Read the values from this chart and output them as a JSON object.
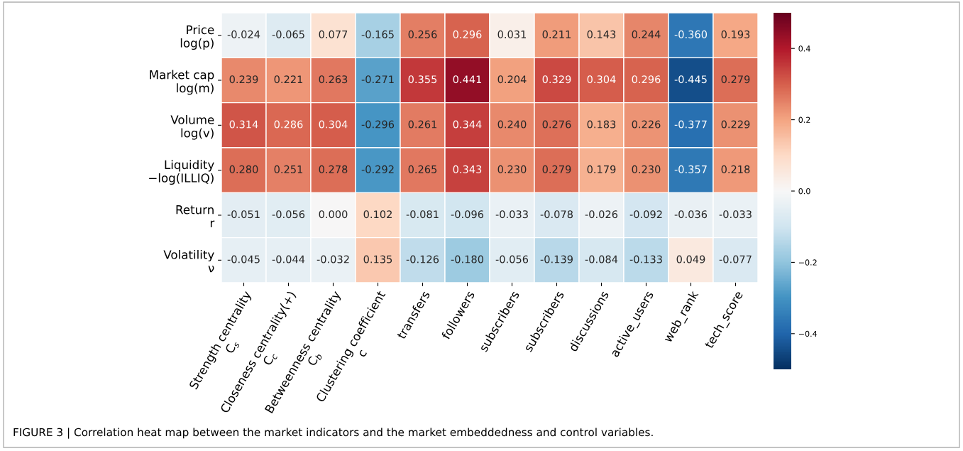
{
  "chart_data": {
    "type": "heatmap",
    "categories": [
      "Strength centrality\nC$_{s}$",
      "Closeness centrality(+)\nC$_{c}$",
      "Betweenness centrality\nC$_{b}$",
      "Clustering coefficient\nc",
      "transfers",
      "followers",
      "subscribers",
      "subscribers",
      "discussions",
      "active_users",
      "web_rank",
      "tech_score"
    ],
    "y_categories": [
      "Price\nlog(p)",
      "Market cap\nlog(m)",
      "Volume\nlog(v)",
      "Liquidity\n−log(ILLIQ)",
      "Return\nr",
      "Volatility\nν"
    ],
    "cells": [
      [
        -0.024,
        -0.065,
        0.077,
        -0.165,
        0.256,
        0.296,
        0.031,
        0.211,
        0.143,
        0.244,
        -0.36,
        0.193
      ],
      [
        0.239,
        0.221,
        0.263,
        -0.271,
        0.355,
        0.441,
        0.204,
        0.329,
        0.304,
        0.296,
        -0.445,
        0.279
      ],
      [
        0.314,
        0.286,
        0.304,
        -0.296,
        0.261,
        0.344,
        0.24,
        0.276,
        0.183,
        0.226,
        -0.377,
        0.229
      ],
      [
        0.28,
        0.251,
        0.278,
        -0.292,
        0.265,
        0.343,
        0.23,
        0.279,
        0.179,
        0.23,
        -0.357,
        0.218
      ],
      [
        -0.051,
        -0.056,
        0.0,
        0.102,
        -0.081,
        -0.096,
        -0.033,
        -0.078,
        -0.026,
        -0.092,
        -0.036,
        -0.033
      ],
      [
        -0.045,
        -0.044,
        -0.032,
        0.135,
        -0.126,
        -0.18,
        -0.056,
        -0.139,
        -0.084,
        -0.133,
        0.049,
        -0.077
      ]
    ],
    "cell_labels": [
      [
        "-0.024",
        "-0.065",
        "0.077",
        "-0.165",
        "0.256",
        "0.296",
        "0.031",
        "0.211",
        "0.143",
        "0.244",
        "-0.360",
        "0.193"
      ],
      [
        "0.239",
        "0.221",
        "0.263",
        "-0.271",
        "0.355",
        "0.441",
        "0.204",
        "0.329",
        "0.304",
        "0.296",
        "-0.445",
        "0.279"
      ],
      [
        "0.314",
        "0.286",
        "0.304",
        "-0.296",
        "0.261",
        "0.344",
        "0.240",
        "0.276",
        "0.183",
        "0.226",
        "-0.377",
        "0.229"
      ],
      [
        "0.280",
        "0.251",
        "0.278",
        "-0.292",
        "0.265",
        "0.343",
        "0.230",
        "0.279",
        "0.179",
        "0.230",
        "-0.357",
        "0.218"
      ],
      [
        "-0.051",
        "-0.056",
        "0.000",
        "0.102",
        "-0.081",
        "-0.096",
        "-0.033",
        "-0.078",
        "-0.026",
        "-0.092",
        "-0.036",
        "-0.033"
      ],
      [
        "-0.045",
        "-0.044",
        "-0.032",
        "0.135",
        "-0.126",
        "-0.180",
        "-0.056",
        "-0.139",
        "-0.084",
        "-0.133",
        "0.049",
        "-0.077"
      ]
    ],
    "clim": [
      -0.5,
      0.5
    ],
    "cticks": [
      {
        "value": -0.4,
        "label": "−0.4"
      },
      {
        "value": -0.2,
        "label": "−0.2"
      },
      {
        "value": 0.0,
        "label": "0.0"
      },
      0.2,
      0.4
    ],
    "annotations": [
      "FIGURE 3 | Correlation heat map between the market indicators and the market embeddedness and control variables."
    ]
  }
}
